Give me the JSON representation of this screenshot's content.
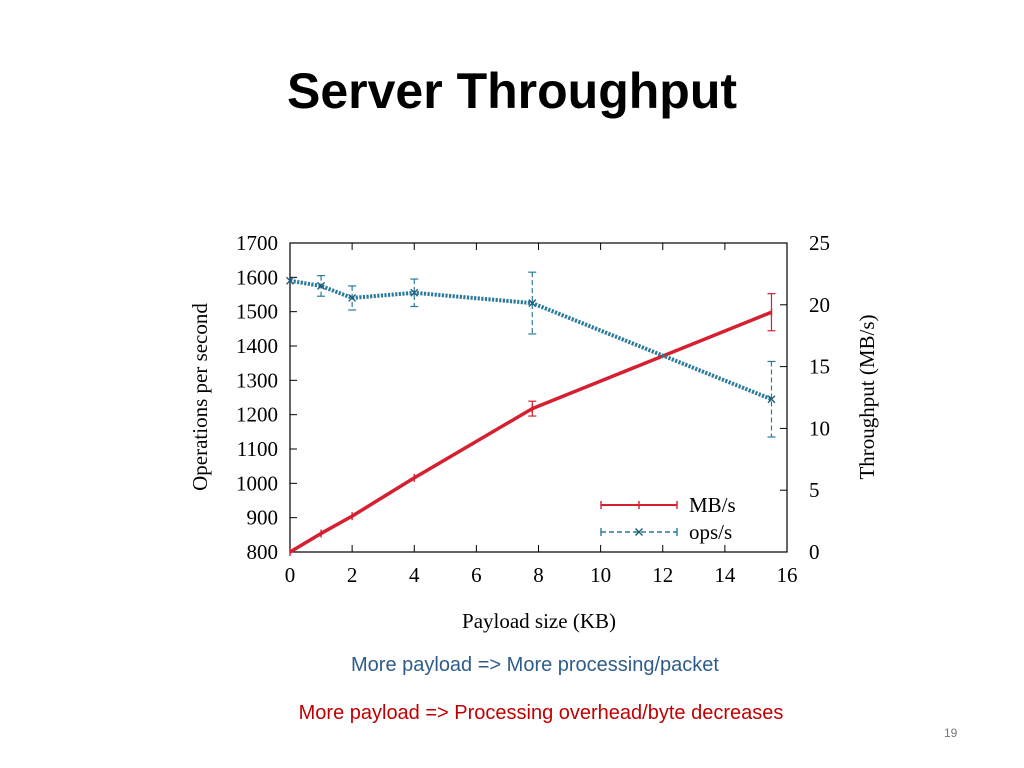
{
  "slide": {
    "title": "Server Throughput",
    "note_blue": "More payload => More processing/packet",
    "note_red": "More payload => Processing overhead/byte decreases",
    "page_number": "19"
  },
  "colors": {
    "mbs": "#d42030",
    "ops": "#2a7a9c",
    "note_blue": "#2e5d8c",
    "note_red": "#c00000"
  },
  "chart_data": {
    "type": "line",
    "xlabel": "Payload size (KB)",
    "ylabel": "Operations per second",
    "y2label": "Throughput (MB/s)",
    "xlim": [
      0,
      16
    ],
    "ylim": [
      800,
      1700
    ],
    "y2lim": [
      0,
      25
    ],
    "xticks": [
      0,
      2,
      4,
      6,
      8,
      10,
      12,
      14,
      16
    ],
    "yticks": [
      800,
      900,
      1000,
      1100,
      1200,
      1300,
      1400,
      1500,
      1600,
      1700
    ],
    "y2ticks": [
      0,
      5,
      10,
      15,
      20,
      25
    ],
    "legend_position": "bottom-right",
    "grid": false,
    "series": [
      {
        "name": "MB/s",
        "axis": "right",
        "color": "#d42030",
        "x": [
          0,
          1,
          2,
          4,
          7.8,
          15.5
        ],
        "y": [
          0,
          1.5,
          2.9,
          6.0,
          11.6,
          19.4
        ],
        "err": [
          0,
          0,
          0,
          0,
          0.6,
          1.5
        ]
      },
      {
        "name": "ops/s",
        "axis": "left",
        "color": "#2a7a9c",
        "x": [
          0,
          1,
          2,
          4,
          7.8,
          15.5
        ],
        "y": [
          1590,
          1575,
          1540,
          1555,
          1525,
          1245
        ],
        "err": [
          0,
          30,
          35,
          40,
          90,
          110
        ]
      }
    ]
  }
}
